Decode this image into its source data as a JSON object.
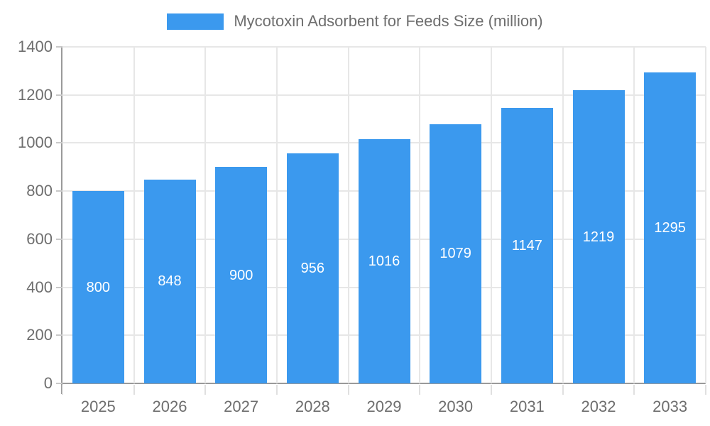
{
  "chart_data": {
    "type": "bar",
    "title": "Mycotoxin Adsorbent for Feeds Size (million)",
    "legend": {
      "label": "Mycotoxin Adsorbent for Feeds Size (million)",
      "position": "top-center",
      "swatch_color": "#3B99EE"
    },
    "categories": [
      "2025",
      "2026",
      "2027",
      "2028",
      "2029",
      "2030",
      "2031",
      "2032",
      "2033"
    ],
    "series": [
      {
        "name": "Mycotoxin Adsorbent for Feeds Size (million)",
        "values": [
          800,
          848,
          900,
          956,
          1016,
          1079,
          1147,
          1219,
          1295
        ]
      }
    ],
    "xlabel": "",
    "ylabel": "",
    "ylim": [
      0,
      1400
    ],
    "yticks": [
      0,
      200,
      400,
      600,
      800,
      1000,
      1200,
      1400
    ],
    "grid": true,
    "value_labels": "inside-center",
    "colors": {
      "bar": "#3B99EE",
      "axis_line": "#9a9a9a",
      "gridline": "#e7e7e7",
      "y_tick": "#c8c8c8",
      "x_tick": "#e0e0e0",
      "axis_text": "#6e6e6e",
      "value_text": "#ffffff",
      "background": "#ffffff"
    }
  }
}
